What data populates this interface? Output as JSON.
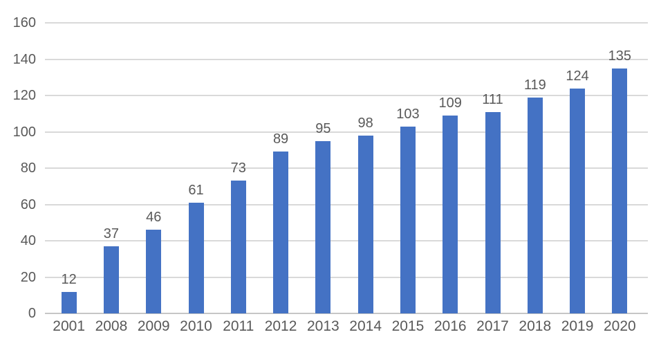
{
  "chart_data": {
    "type": "bar",
    "categories": [
      "2001",
      "2008",
      "2009",
      "2010",
      "2011",
      "2012",
      "2013",
      "2014",
      "2015",
      "2016",
      "2017",
      "2018",
      "2019",
      "2020"
    ],
    "values": [
      12,
      37,
      46,
      61,
      73,
      89,
      95,
      98,
      103,
      109,
      111,
      119,
      124,
      135
    ],
    "title": "",
    "xlabel": "",
    "ylabel": "",
    "ylim": [
      0,
      160
    ],
    "yticks": [
      0,
      20,
      40,
      60,
      80,
      100,
      120,
      140,
      160
    ],
    "grid": true,
    "data_labels": true,
    "legend_position": "none",
    "colors": {
      "bar": "#4472C4",
      "grid_line": "#D9D9D9",
      "axis_line": "#C6C6C6",
      "text": "#595959",
      "background": "#FFFFFF"
    }
  }
}
